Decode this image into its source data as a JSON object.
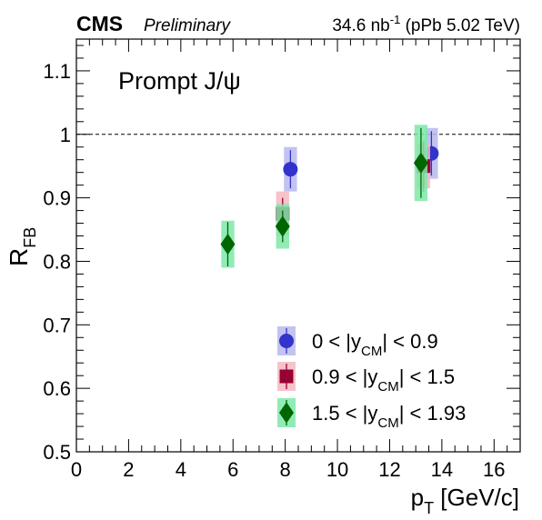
{
  "header": {
    "experiment": "CMS",
    "status": "Preliminary",
    "lumi": "34.6 nb",
    "lumi_exp": "-1",
    "system": " (pPb 5.02 TeV)"
  },
  "panel_label": "Prompt J/ψ",
  "chart_data": {
    "type": "scatter",
    "title": "",
    "xlabel": {
      "main": "p",
      "sub": "T",
      "unit": " [GeV/c]"
    },
    "ylabel": {
      "main": "R",
      "sub": "FB"
    },
    "xlim": [
      0,
      17
    ],
    "ylim": [
      0.5,
      1.15
    ],
    "x_ticks": [
      0,
      2,
      4,
      6,
      8,
      10,
      12,
      14,
      16
    ],
    "y_ticks": [
      0.5,
      0.6,
      0.7,
      0.8,
      0.9,
      1,
      1.1
    ],
    "reference_line": 1.0,
    "legend_position": "bottom-right",
    "series": [
      {
        "label_parts": [
          "0 < |y",
          "CM",
          "| < 0.9"
        ],
        "marker": "circle",
        "color": "#3333cc",
        "syst_color": "#b8b8ee",
        "points": [
          {
            "x": 8.2,
            "y": 0.945,
            "stat": 0.03,
            "syst": 0.035,
            "xw": 0.5
          },
          {
            "x": 13.6,
            "y": 0.97,
            "stat": 0.035,
            "syst": 0.04,
            "xw": 0.5
          }
        ]
      },
      {
        "label_parts": [
          "0.9 < |y",
          "CM",
          "| < 1.5"
        ],
        "marker": "square",
        "color": "#990033",
        "syst_color": "#f4b8c0",
        "points": [
          {
            "x": 7.9,
            "y": 0.875,
            "stat": 0.025,
            "syst": 0.035,
            "xw": 0.5
          },
          {
            "x": 13.3,
            "y": 0.95,
            "stat": 0.04,
            "syst": 0.035,
            "xw": 0.5
          }
        ]
      },
      {
        "label_parts": [
          "1.5 < |y",
          "CM",
          "| < 1.93"
        ],
        "marker": "diamond",
        "color": "#006600",
        "syst_color": "#7ee8a8",
        "points": [
          {
            "x": 5.8,
            "y": 0.827,
            "stat": 0.035,
            "syst": 0.037,
            "xw": 0.5
          },
          {
            "x": 7.9,
            "y": 0.855,
            "stat": 0.025,
            "syst": 0.035,
            "xw": 0.5
          },
          {
            "x": 13.2,
            "y": 0.955,
            "stat": 0.055,
            "syst": 0.06,
            "xw": 0.5
          }
        ]
      }
    ]
  }
}
